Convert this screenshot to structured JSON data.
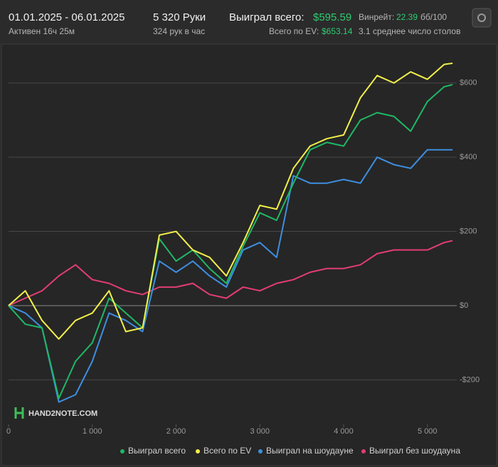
{
  "header": {
    "period": "01.01.2025 - 06.01.2025",
    "active": "Активен 16ч 25м",
    "hands": "5 320 Руки",
    "hands_per_hour": "324 рук в час",
    "won_label": "Выиграл всего:",
    "won_value": "$595.59",
    "ev_label": "Всего по EV:",
    "ev_value": "$653.14",
    "winrate_label": "Винрейт:",
    "winrate_value": "22.39",
    "winrate_unit": "бб/100",
    "tables": "3.1 среднее число столов",
    "logo": "HAND2NOTE.COM"
  },
  "chart_data": {
    "type": "line",
    "x": [
      0,
      200,
      400,
      600,
      800,
      1000,
      1200,
      1400,
      1600,
      1800,
      2000,
      2200,
      2400,
      2600,
      2800,
      3000,
      3200,
      3400,
      3600,
      3800,
      4000,
      4200,
      4400,
      4600,
      4800,
      5000,
      5200,
      5300
    ],
    "series": [
      {
        "name": "Выиграл всего",
        "color": "#1fb866",
        "values": [
          0,
          -50,
          -60,
          -250,
          -150,
          -100,
          20,
          -20,
          -60,
          180,
          120,
          150,
          100,
          60,
          160,
          250,
          230,
          330,
          420,
          440,
          430,
          500,
          520,
          510,
          470,
          550,
          590,
          595.59
        ]
      },
      {
        "name": "Всего по EV",
        "color": "#f2ef4a",
        "values": [
          0,
          40,
          -40,
          -90,
          -40,
          -20,
          40,
          -70,
          -60,
          190,
          200,
          150,
          130,
          80,
          170,
          270,
          260,
          370,
          430,
          450,
          460,
          560,
          620,
          600,
          630,
          610,
          650,
          653.14
        ]
      },
      {
        "name": "Выиграл на шоудауне",
        "color": "#3d8fe0",
        "values": [
          0,
          -20,
          -60,
          -260,
          -240,
          -150,
          -20,
          -40,
          -70,
          120,
          90,
          120,
          80,
          50,
          150,
          170,
          130,
          350,
          330,
          330,
          340,
          330,
          400,
          380,
          370,
          420,
          420,
          420
        ]
      },
      {
        "name": "Выиграл без шоудауна",
        "color": "#e23d74",
        "values": [
          0,
          20,
          40,
          80,
          110,
          70,
          60,
          40,
          30,
          50,
          50,
          60,
          30,
          20,
          50,
          40,
          60,
          70,
          90,
          100,
          100,
          110,
          140,
          150,
          150,
          150,
          170,
          175
        ]
      }
    ],
    "xlim": [
      0,
      5350
    ],
    "ylim": [
      -320,
      680
    ],
    "xticks": [
      0,
      {
        "value": 1000,
        "label": "1 000"
      },
      {
        "value": 2000,
        "label": "2 000"
      },
      {
        "value": 3000,
        "label": "3 000"
      },
      {
        "value": 4000,
        "label": "4 000"
      },
      {
        "value": 5000,
        "label": "5 000"
      }
    ],
    "yticks": [
      {
        "value": -200,
        "label": "-$200"
      },
      {
        "value": 0,
        "label": "$0"
      },
      {
        "value": 200,
        "label": "$200"
      },
      {
        "value": 400,
        "label": "$400"
      },
      {
        "value": 600,
        "label": "$600"
      }
    ],
    "grid": true
  }
}
